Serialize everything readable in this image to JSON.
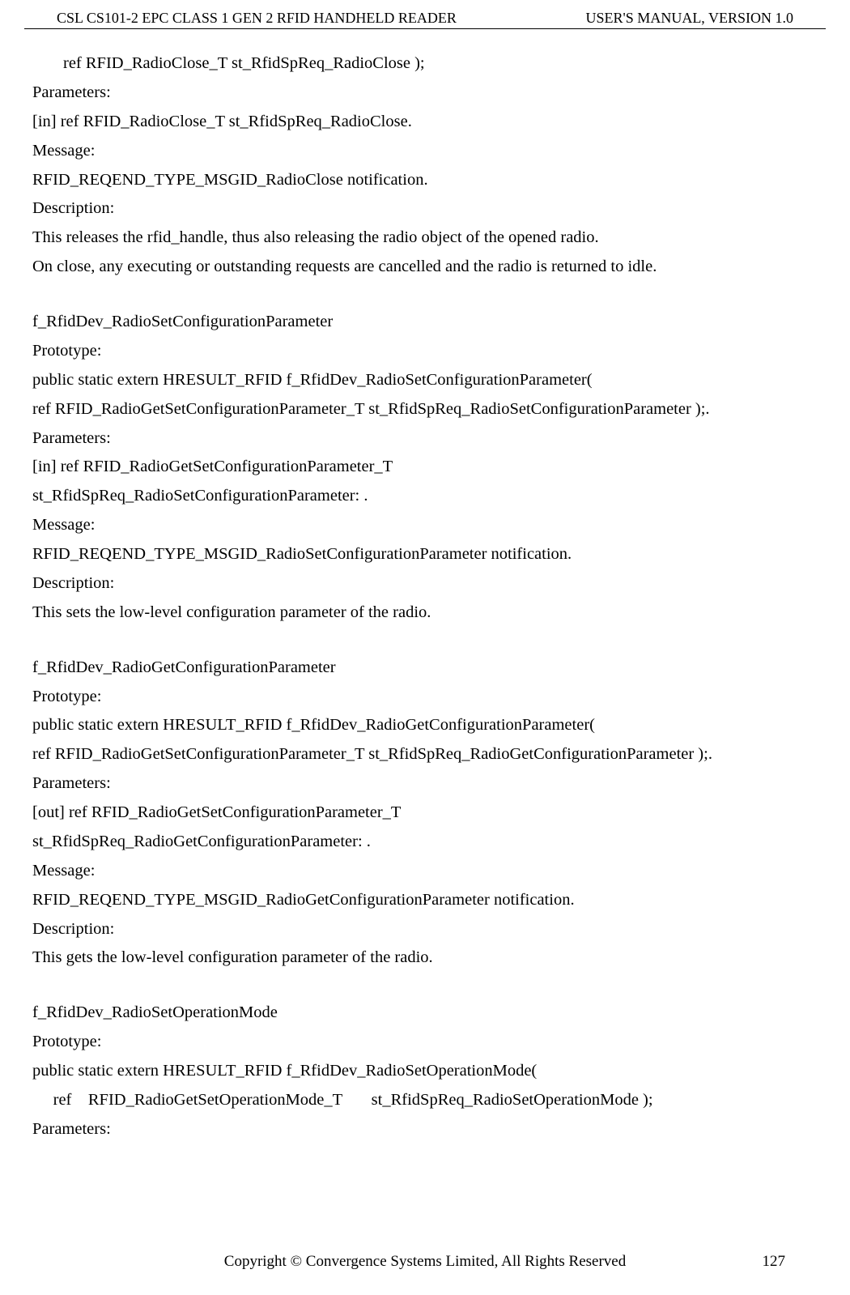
{
  "header": {
    "left": "CSL CS101-2 EPC CLASS 1 GEN 2 RFID HANDHELD READER",
    "right": "USER'S  MANUAL,  VERSION  1.0"
  },
  "body": {
    "s1": {
      "l1": "ref RFID_RadioClose_T st_RfidSpReq_RadioClose );",
      "l2": "Parameters:",
      "l3": "[in] ref RFID_RadioClose_T st_RfidSpReq_RadioClose.",
      "l4": "Message:",
      "l5": "RFID_REQEND_TYPE_MSGID_RadioClose notification.",
      "l6": "Description:",
      "l7": "This releases the rfid_handle, thus also releasing the radio object of the opened radio.",
      "l8": "On close, any executing or outstanding requests are cancelled and the radio is returned to idle."
    },
    "s2": {
      "l1": "f_RfidDev_RadioSetConfigurationParameter",
      "l2": "Prototype:",
      "l3": "public static extern HRESULT_RFID f_RfidDev_RadioSetConfigurationParameter(",
      "l4": "ref    RFID_RadioGetSetConfigurationParameter_T st_RfidSpReq_RadioSetConfigurationParameter );.",
      "l5": "Parameters:",
      "l6": "[in] ref    RFID_RadioGetSetConfigurationParameter_T",
      "l7": "st_RfidSpReq_RadioSetConfigurationParameter: .",
      "l8": "Message:",
      "l9": "RFID_REQEND_TYPE_MSGID_RadioSetConfigurationParameter notification.",
      "l10": "Description:",
      "l11": "This sets the low-level configuration parameter of the radio."
    },
    "s3": {
      "l1": "f_RfidDev_RadioGetConfigurationParameter",
      "l2": "Prototype:",
      "l3": "public static extern HRESULT_RFID f_RfidDev_RadioGetConfigurationParameter(",
      "l4": "ref RFID_RadioGetSetConfigurationParameter_T st_RfidSpReq_RadioGetConfigurationParameter );.",
      "l5": "Parameters:",
      "l6": "[out] ref RFID_RadioGetSetConfigurationParameter_T",
      "l7": "st_RfidSpReq_RadioGetConfigurationParameter: .",
      "l8": "Message:",
      "l9": "RFID_REQEND_TYPE_MSGID_RadioGetConfigurationParameter notification.",
      "l10": "Description:",
      "l11": "This gets the low-level configuration parameter of the radio."
    },
    "s4": {
      "l1": "f_RfidDev_RadioSetOperationMode",
      "l2": "Prototype:",
      "l3": "public static extern HRESULT_RFID f_RfidDev_RadioSetOperationMode(",
      "l4": "     ref    RFID_RadioGetSetOperationMode_T       st_RfidSpReq_RadioSetOperationMode );",
      "l5": "Parameters:"
    }
  },
  "footer": {
    "copyright": "Copyright © Convergence Systems Limited, All Rights Reserved",
    "page": "127"
  }
}
